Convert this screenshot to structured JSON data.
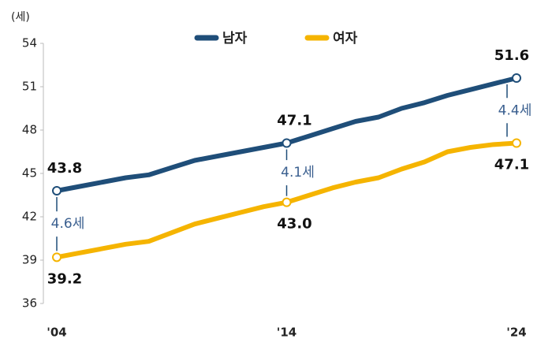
{
  "chart_data": {
    "type": "line",
    "y_label": "(세)",
    "categories": [
      "'04",
      null,
      null,
      null,
      null,
      null,
      null,
      null,
      null,
      null,
      "'14",
      null,
      null,
      null,
      null,
      null,
      null,
      null,
      null,
      null,
      "'24"
    ],
    "series": [
      {
        "name": "남자",
        "color": "#1f4e79",
        "values": [
          43.8,
          44.1,
          44.4,
          44.7,
          44.9,
          45.4,
          45.9,
          46.2,
          46.5,
          46.8,
          47.1,
          47.6,
          48.1,
          48.6,
          48.9,
          49.5,
          49.9,
          50.4,
          50.8,
          51.2,
          51.6
        ],
        "value_labels": [
          "43.8",
          null,
          null,
          null,
          null,
          null,
          null,
          null,
          null,
          null,
          "47.1",
          null,
          null,
          null,
          null,
          null,
          null,
          null,
          null,
          null,
          "51.6"
        ]
      },
      {
        "name": "여자",
        "color": "#f5b400",
        "values": [
          39.2,
          39.5,
          39.8,
          40.1,
          40.3,
          40.9,
          41.5,
          41.9,
          42.3,
          42.7,
          43.0,
          43.5,
          44.0,
          44.4,
          44.7,
          45.3,
          45.8,
          46.5,
          46.8,
          47.0,
          47.1
        ],
        "value_labels": [
          "39.2",
          null,
          null,
          null,
          null,
          null,
          null,
          null,
          null,
          null,
          "43.0",
          null,
          null,
          null,
          null,
          null,
          null,
          null,
          null,
          null,
          "47.1"
        ]
      }
    ],
    "annotations": [
      "4.6세",
      "4.1세",
      "4.4세"
    ],
    "ylim": [
      36,
      54
    ],
    "yticks": [
      36,
      39,
      42,
      45,
      48,
      51,
      54
    ],
    "grid": false,
    "legend": "top"
  }
}
